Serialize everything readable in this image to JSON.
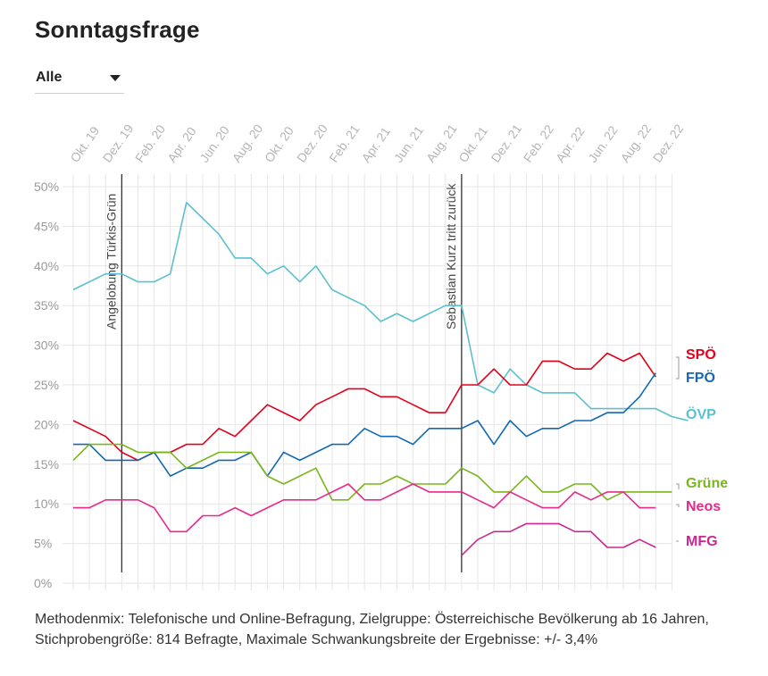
{
  "title": "Sonntagsfrage",
  "filter": {
    "selected": "Alle",
    "icon": "caret-down-icon"
  },
  "footnote": "Methodenmix: Telefonische und Online-Befragung, Zielgruppe: Österreichische Bevölkerung ab 16 Jahren, Stichprobengröße: 814 Befragte, Maximale Schwankungsbreite der Ergebnisse: +/- 3,4%",
  "chart_data": {
    "type": "line",
    "x_labels": [
      "Okt. 19",
      "Dez. 19",
      "Feb. 20",
      "Apr. 20",
      "Jun. 20",
      "Aug. 20",
      "Okt. 20",
      "Dez. 20",
      "Feb. 21",
      "Apr. 21",
      "Jun. 21",
      "Aug. 21",
      "Okt. 21",
      "Dez. 21",
      "Feb. 22",
      "Apr. 22",
      "Jun. 22",
      "Aug. 22",
      "Dez. 22"
    ],
    "y_ticks": [
      "0%",
      "5%",
      "10%",
      "15%",
      "20%",
      "25%",
      "30%",
      "35%",
      "40%",
      "45%",
      "50%"
    ],
    "ylim": [
      0,
      50
    ],
    "grid": true,
    "events": [
      {
        "label": "Angelobung Türkis-Grün",
        "x": 3
      },
      {
        "label": "Sebastian Kurz tritt zurück",
        "x": 24
      }
    ],
    "series": [
      {
        "name": "ÖVP",
        "color": "#5bc0cf",
        "start": 0,
        "values": [
          37,
          38,
          39,
          39,
          38,
          38,
          39,
          48,
          46,
          44,
          41,
          41,
          39,
          40,
          38,
          40,
          37,
          36,
          35,
          33,
          34,
          33,
          34,
          35,
          35,
          25,
          24,
          27,
          25,
          24,
          24,
          24,
          22,
          22,
          22,
          22,
          22,
          21,
          20.5
        ]
      },
      {
        "name": "SPÖ",
        "color": "#e3001b",
        "start": 0,
        "values": [
          20.5,
          19.5,
          18.5,
          16.5,
          15.5,
          16.5,
          16.5,
          17.5,
          17.5,
          19.5,
          18.5,
          20.5,
          22.5,
          21.5,
          20.5,
          22.5,
          23.5,
          24.5,
          24.5,
          23.5,
          23.5,
          22.5,
          21.5,
          21.5,
          25,
          25,
          27,
          25,
          25,
          28,
          28,
          27,
          27,
          29,
          28,
          29,
          26
        ]
      },
      {
        "name": "FPÖ",
        "color": "#1268b3",
        "start": 0,
        "values": [
          17.5,
          17.5,
          15.5,
          15.5,
          15.5,
          16.5,
          13.5,
          14.5,
          14.5,
          15.5,
          15.5,
          16.5,
          13.5,
          16.5,
          15.5,
          16.5,
          17.5,
          17.5,
          19.5,
          18.5,
          18.5,
          17.5,
          19.5,
          19.5,
          19.5,
          20.5,
          17.5,
          20.5,
          18.5,
          19.5,
          19.5,
          20.5,
          20.5,
          21.5,
          21.5,
          23.5,
          26.5
        ]
      },
      {
        "name": "Grüne",
        "color": "#7ab51d",
        "start": 0,
        "values": [
          15.5,
          17.5,
          17.5,
          17.5,
          16.5,
          16.5,
          16.5,
          14.5,
          15.5,
          16.5,
          16.5,
          16.5,
          13.5,
          12.5,
          13.5,
          14.5,
          10.5,
          10.5,
          12.5,
          12.5,
          13.5,
          12.5,
          12.5,
          12.5,
          14.5,
          13.5,
          11.5,
          11.5,
          13.5,
          11.5,
          11.5,
          12.5,
          12.5,
          10.5,
          11.5,
          11.5,
          11.5,
          11.5
        ]
      },
      {
        "name": "Neos",
        "color": "#e8298a",
        "start": 0,
        "values": [
          9.5,
          9.5,
          10.5,
          10.5,
          10.5,
          9.5,
          6.5,
          6.5,
          8.5,
          8.5,
          9.5,
          8.5,
          9.5,
          10.5,
          10.5,
          10.5,
          11.5,
          12.5,
          10.5,
          10.5,
          11.5,
          12.5,
          11.5,
          11.5,
          11.5,
          10.5,
          9.5,
          11.5,
          10.5,
          9.5,
          9.5,
          11.5,
          10.5,
          11.5,
          11.5,
          9.5,
          9.5
        ]
      },
      {
        "name": "MFG",
        "color": "#c8288f",
        "start": 24,
        "values": [
          3.5,
          5.5,
          6.5,
          6.5,
          7.5,
          7.5,
          7.5,
          6.5,
          6.5,
          4.5,
          4.5,
          5.5,
          4.5
        ]
      }
    ]
  }
}
